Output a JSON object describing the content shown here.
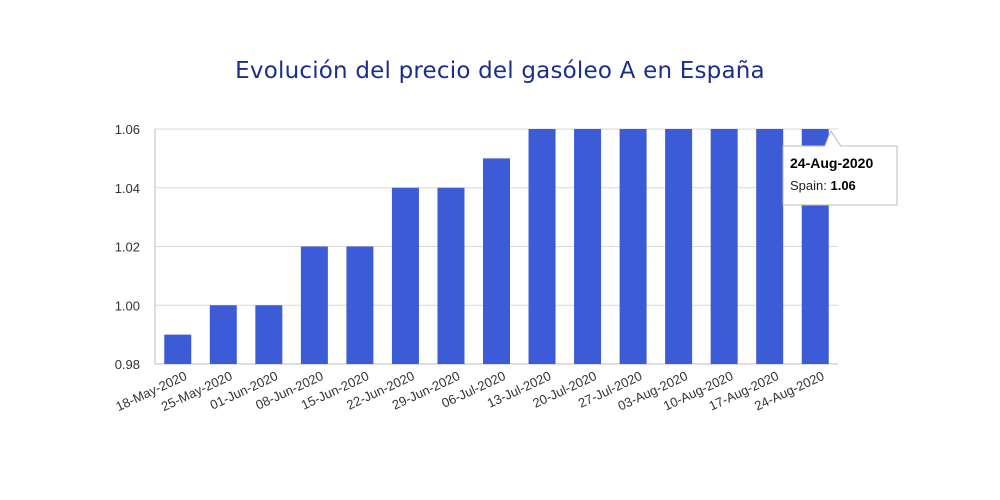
{
  "chart_data": {
    "type": "bar",
    "title": "Evolución del precio del gasóleo A en España",
    "categories": [
      "18-May-2020",
      "25-May-2020",
      "01-Jun-2020",
      "08-Jun-2020",
      "15-Jun-2020",
      "22-Jun-2020",
      "29-Jun-2020",
      "06-Jul-2020",
      "13-Jul-2020",
      "20-Jul-2020",
      "27-Jul-2020",
      "03-Aug-2020",
      "10-Aug-2020",
      "17-Aug-2020",
      "24-Aug-2020"
    ],
    "series": [
      {
        "name": "Spain",
        "values": [
          0.99,
          1.0,
          1.0,
          1.02,
          1.02,
          1.04,
          1.04,
          1.05,
          1.06,
          1.06,
          1.06,
          1.06,
          1.06,
          1.06,
          1.06
        ]
      }
    ],
    "ylim": [
      0.98,
      1.06
    ],
    "yticks": [
      "0.98",
      "1.00",
      "1.02",
      "1.04",
      "1.06"
    ],
    "grid": true,
    "bar_color": "#3c5bd6",
    "tooltip": {
      "title": "24-Aug-2020",
      "series_label": "Spain:",
      "value": "1.06"
    }
  }
}
